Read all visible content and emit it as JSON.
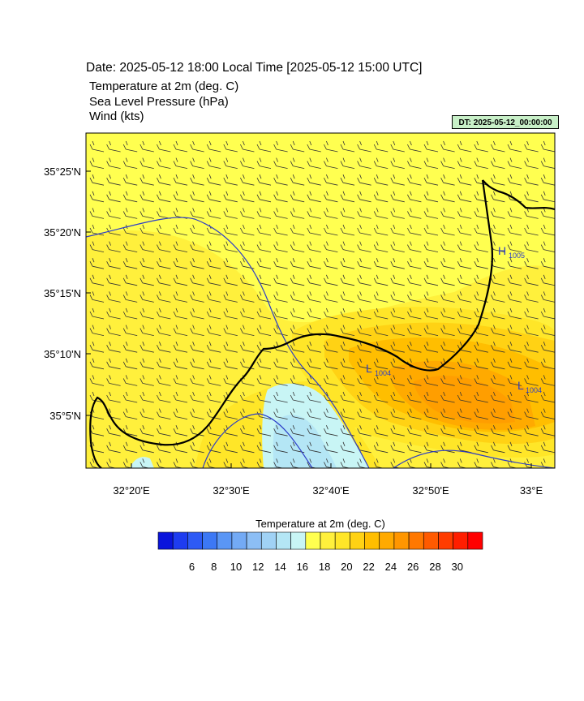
{
  "header": {
    "title": "Date: 2025-05-12  18:00 Local Time [2025-05-12  15:00 UTC]",
    "fields": [
      "Temperature at 2m   (deg. C)",
      "Sea Level Pressure   (hPa)",
      "Wind   (kts)"
    ],
    "dt_badge": "DT: 2025-05-12_00:00:00"
  },
  "map": {
    "lat_labels": [
      "35°25'N",
      "35°20'N",
      "35°15'N",
      "35°10'N",
      "35°5'N"
    ],
    "lon_labels": [
      "32°20'E",
      "32°30'E",
      "32°40'E",
      "32°50'E",
      "33°E"
    ],
    "pressure_centers": [
      {
        "type": "H",
        "value": "1005"
      },
      {
        "type": "L",
        "value": "1004"
      },
      {
        "type": "L",
        "value": "1004"
      }
    ]
  },
  "colorbar": {
    "title": "Temperature at 2m  (deg. C)",
    "tick_labels": [
      "6",
      "8",
      "10",
      "12",
      "14",
      "16",
      "18",
      "20",
      "22",
      "24",
      "26",
      "28",
      "30"
    ],
    "colors": [
      "#0a14dc",
      "#1e3cf0",
      "#2d5af5",
      "#3c78f5",
      "#5a96f5",
      "#73aaf5",
      "#8cbef5",
      "#a0d2f5",
      "#b4e6f5",
      "#c8f5f5",
      "#ffff50",
      "#fff03c",
      "#ffe628",
      "#ffd214",
      "#ffbe00",
      "#ffaa00",
      "#ff9600",
      "#ff7800",
      "#ff5a00",
      "#ff3c00",
      "#ff1e00",
      "#ff0000"
    ]
  }
}
